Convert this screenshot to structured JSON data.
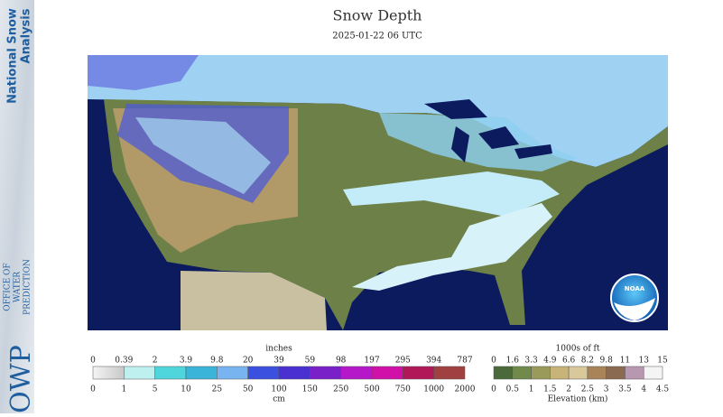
{
  "header": {
    "title": "Snow Depth",
    "subtitle": "2025-01-22 06 UTC"
  },
  "sidebar": {
    "product": [
      "National Snow",
      "Analysis"
    ],
    "org_abbr": "OWP",
    "org": [
      "OFFICE OF",
      "WATER",
      "PREDICTION"
    ]
  },
  "logo": "NOAA",
  "snow_legend": {
    "unit_top": "inches",
    "inches": [
      0,
      0.39,
      2,
      3.9,
      9.8,
      20,
      39,
      59,
      98,
      197,
      295,
      394,
      787
    ],
    "cm": [
      0,
      1,
      5,
      10,
      25,
      50,
      100,
      150,
      250,
      500,
      750,
      1000,
      2000
    ],
    "unit_bottom": "cm",
    "colors": [
      "#c8c8c8",
      "#bff0f0",
      "#4fd6dc",
      "#3ab4d8",
      "#78b4f0",
      "#3c50e0",
      "#4a30d0",
      "#7a20c8",
      "#b418c8",
      "#d010a8",
      "#b01858",
      "#a04040"
    ]
  },
  "elevation_legend": {
    "unit_top": "1000s of ft",
    "ft": [
      0,
      1.6,
      3.3,
      4.9,
      6.6,
      8.2,
      9.8,
      11,
      13,
      15
    ],
    "km": [
      0,
      0.5,
      1,
      1.5,
      2,
      2.5,
      3,
      3.5,
      4,
      4.5
    ],
    "unit_bottom": "Elevation (km)",
    "colors": [
      "#4a6a3a",
      "#6f8a4a",
      "#9a9a5a",
      "#c8b478",
      "#d8c89a",
      "#a88458",
      "#8a6a50",
      "#b898b0",
      "#f4f4f4"
    ]
  }
}
